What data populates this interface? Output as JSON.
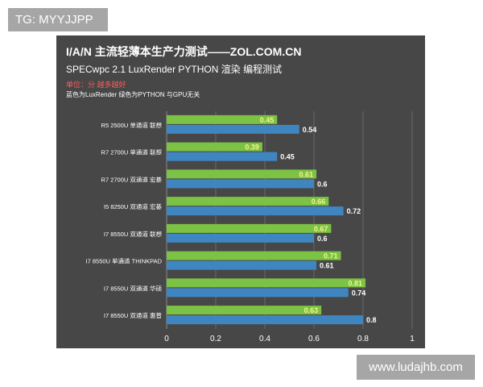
{
  "tag": {
    "text": "TG: MYYJJPP"
  },
  "watermark": {
    "text": "www.ludajhb.com"
  },
  "colors": {
    "python": "#7cc244",
    "luxrender": "#3f86c0",
    "panel": "#474747",
    "unit": "#ff5b5b"
  },
  "chart_data": {
    "type": "bar",
    "orientation": "horizontal",
    "title": "I/A/N 主流轻薄本生产力测试——ZOL.COM.CN",
    "subtitle": "SPECwpc 2.1 LuxRender PYTHON 渲染 编程测试",
    "unit_note": "单位：分 越多越好",
    "legend_note": "蓝色为LuxRender 绿色为PYTHON 与GPU无关",
    "categories": [
      "R5 2500U 单通道 联想",
      "R7 2700U 单通道 联想",
      "R7 2700U 双通道 宏碁",
      "I5 8250U 双通道 宏碁",
      "I7 8550U 双通道 联想",
      "I7 8550U 单通道 THINKPAD",
      "I7 8550U 双通道 华硕",
      "I7 8550U 双通道 惠普"
    ],
    "series": [
      {
        "key": "python",
        "color": "#7cc244",
        "values": [
          0.45,
          0.39,
          0.61,
          0.66,
          0.67,
          0.71,
          0.81,
          0.63
        ]
      },
      {
        "key": "luxrender",
        "color": "#3f86c0",
        "values": [
          0.54,
          0.45,
          0.6,
          0.72,
          0.6,
          0.61,
          0.74,
          0.8
        ]
      }
    ],
    "xlim": [
      0,
      1
    ],
    "xticks": [
      "0",
      "0.2",
      "0.4",
      "0.6",
      "0.8",
      "1"
    ],
    "grid": true,
    "legend": "none"
  }
}
